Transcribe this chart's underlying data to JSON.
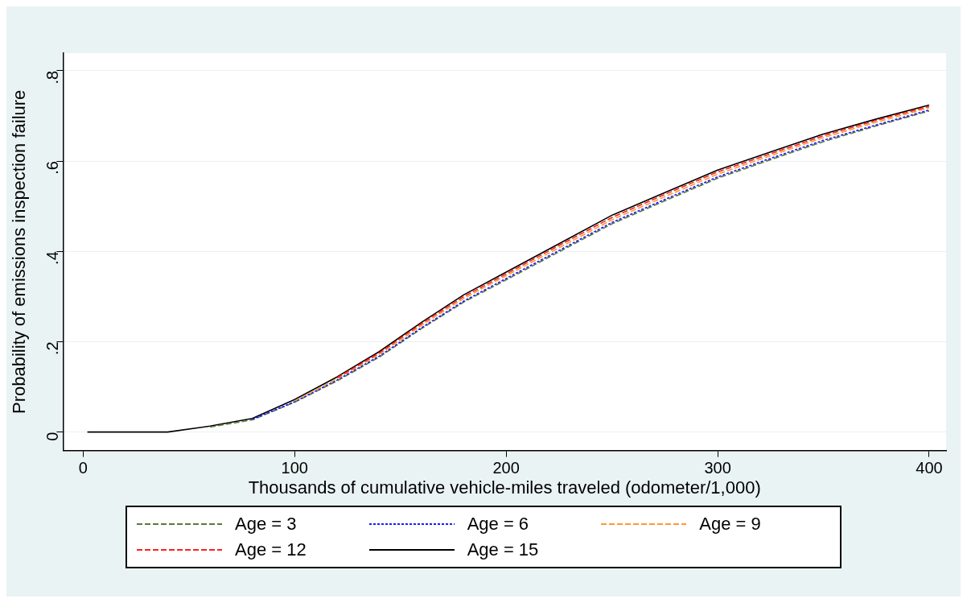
{
  "chart_data": {
    "type": "line",
    "xlabel": "Thousands of cumulative vehicle-miles traveled (odometer/1,000)",
    "ylabel": "Probability of emissions inspection failure",
    "x": [
      2,
      20,
      40,
      60,
      80,
      100,
      120,
      140,
      160,
      180,
      200,
      225,
      250,
      275,
      300,
      325,
      350,
      375,
      400
    ],
    "series": [
      {
        "name": "Age = 3",
        "color": "#5a7a3a",
        "line_style": "dashed",
        "values": [
          null,
          null,
          null,
          0.011,
          0.027,
          0.066,
          0.113,
          0.166,
          0.229,
          0.288,
          0.337,
          0.399,
          0.461,
          0.512,
          0.562,
          0.603,
          0.643,
          0.678,
          0.711
        ]
      },
      {
        "name": "Age = 6",
        "color": "#1a1aff",
        "line_style": "dotted",
        "values": [
          null,
          null,
          null,
          null,
          0.028,
          0.067,
          0.115,
          0.168,
          0.231,
          0.29,
          0.34,
          0.402,
          0.464,
          0.515,
          0.565,
          0.606,
          0.646,
          0.68,
          0.713
        ]
      },
      {
        "name": "Age = 9",
        "color": "#ff9933",
        "line_style": "dashed",
        "values": [
          null,
          null,
          null,
          null,
          null,
          0.069,
          0.118,
          0.172,
          0.236,
          0.296,
          0.346,
          0.408,
          0.47,
          0.521,
          0.571,
          0.612,
          0.652,
          0.686,
          0.718
        ]
      },
      {
        "name": "Age = 12",
        "color": "#ff2020",
        "line_style": "dashed",
        "values": [
          null,
          null,
          null,
          null,
          null,
          null,
          0.12,
          0.175,
          0.24,
          0.3,
          0.35,
          0.413,
          0.475,
          0.526,
          0.576,
          0.616,
          0.656,
          0.69,
          0.721
        ]
      },
      {
        "name": "Age = 15",
        "color": "#000000",
        "line_style": "solid",
        "values": [
          0,
          0,
          0,
          0.013,
          0.03,
          0.072,
          0.122,
          0.178,
          0.243,
          0.304,
          0.354,
          0.417,
          0.48,
          0.53,
          0.58,
          0.62,
          0.66,
          0.693,
          0.724
        ]
      }
    ],
    "xlim": [
      -9.5,
      408
    ],
    "xticks": [
      0,
      100,
      200,
      300,
      400
    ],
    "ylim": [
      -0.041,
      0.839
    ],
    "yticks": [
      0,
      {
        "value": 0.2,
        "label": ".2"
      },
      {
        "value": 0.4,
        "label": ".4"
      },
      {
        "value": 0.6,
        "label": ".6"
      },
      {
        "value": 0.8,
        "label": ".8"
      }
    ],
    "grid": "y",
    "legend": "bottom",
    "marker": "none"
  }
}
